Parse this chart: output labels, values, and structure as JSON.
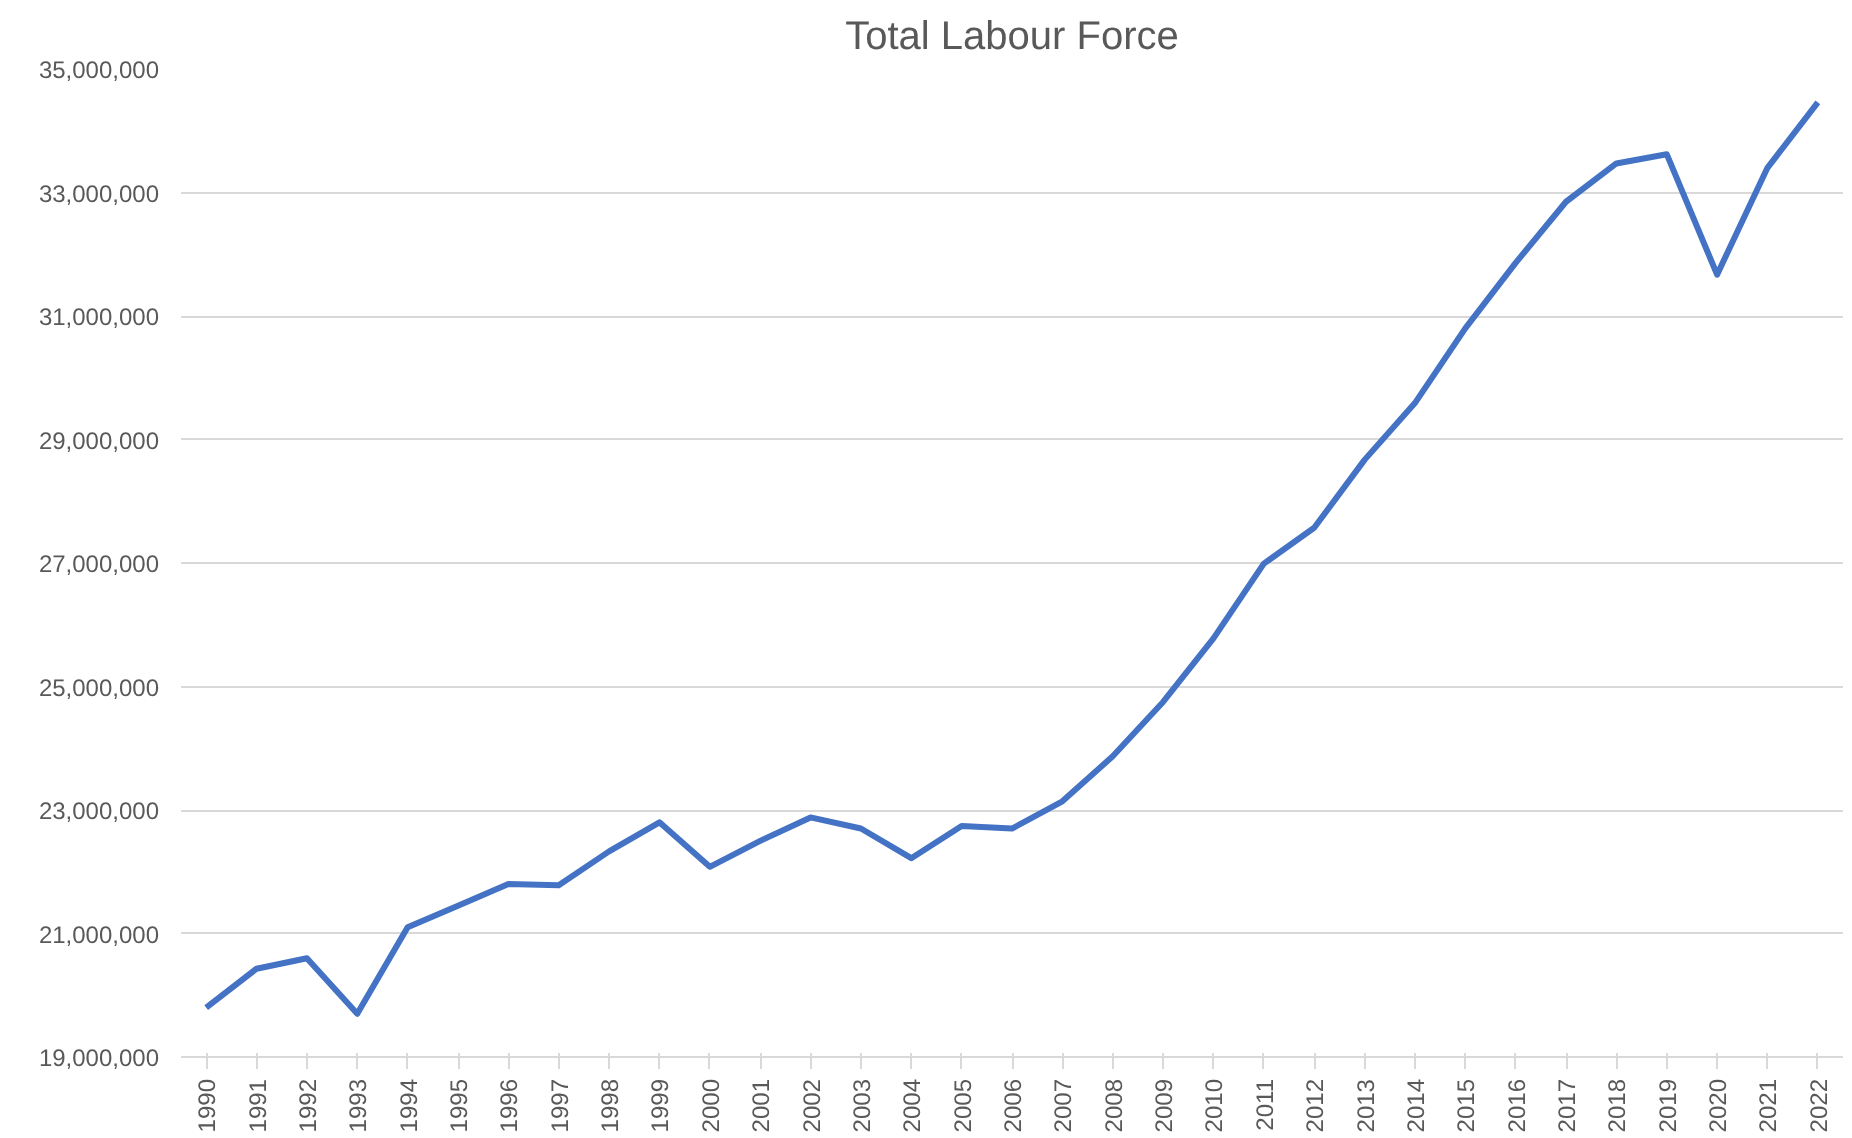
{
  "chart_data": {
    "type": "line",
    "title": "Total Labour Force",
    "categories": [
      "1990",
      "1991",
      "1992",
      "1993",
      "1994",
      "1995",
      "1996",
      "1997",
      "1998",
      "1999",
      "2000",
      "2001",
      "2002",
      "2003",
      "2004",
      "2005",
      "2006",
      "2007",
      "2008",
      "2009",
      "2010",
      "2011",
      "2012",
      "2013",
      "2014",
      "2015",
      "2016",
      "2017",
      "2018",
      "2019",
      "2020",
      "2021",
      "2022"
    ],
    "series": [
      {
        "color": "#4472c4",
        "values": [
          19800000,
          20430000,
          20600000,
          19700000,
          21100000,
          21450000,
          21800000,
          21780000,
          22330000,
          22800000,
          22080000,
          22500000,
          22880000,
          22700000,
          22220000,
          22740000,
          22700000,
          23140000,
          23870000,
          24750000,
          25780000,
          26990000,
          27570000,
          28670000,
          29590000,
          30800000,
          31860000,
          32850000,
          33470000,
          33620000,
          31670000,
          33400000,
          34460000
        ]
      }
    ],
    "ylim": [
      19000000,
      35000000
    ],
    "yticks": [
      {
        "value": 19000000,
        "label": "19,000,000"
      },
      {
        "value": 21000000,
        "label": "21,000,000"
      },
      {
        "value": 23000000,
        "label": "23,000,000"
      },
      {
        "value": 25000000,
        "label": "25,000,000"
      },
      {
        "value": 27000000,
        "label": "27,000,000"
      },
      {
        "value": 29000000,
        "label": "29,000,000"
      },
      {
        "value": 31000000,
        "label": "31,000,000"
      },
      {
        "value": 33000000,
        "label": "33,000,000"
      },
      {
        "value": 35000000,
        "label": "35,000,000"
      }
    ],
    "grid": "y",
    "line_style": "solid"
  }
}
